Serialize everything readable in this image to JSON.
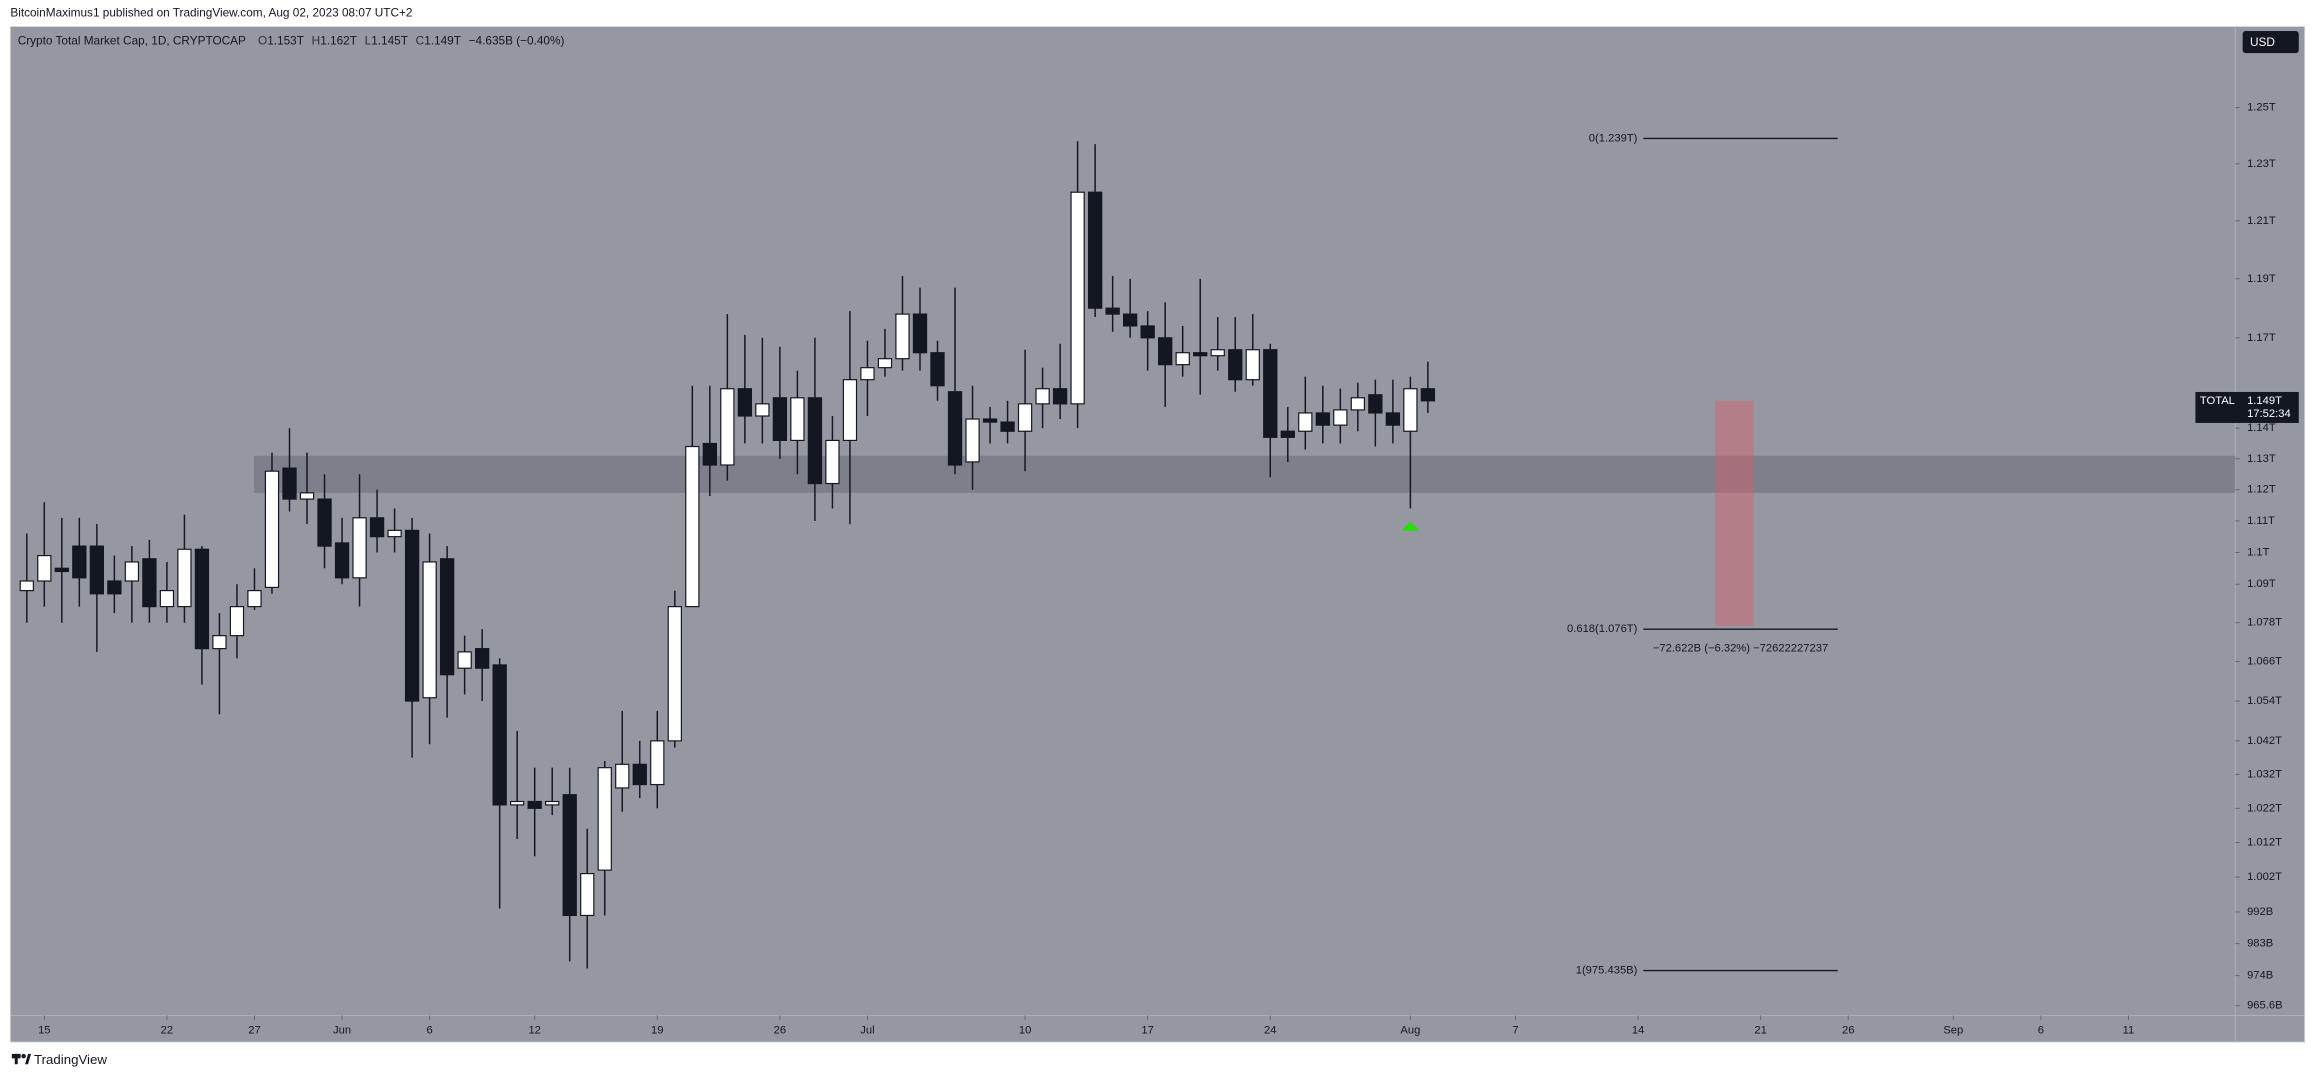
{
  "chart_data": {
    "type": "candlestick",
    "publisher": "BitcoinMaximus1 published on TradingView.com, Aug 02, 2023 08:07 UTC+2",
    "title": "Crypto Total Market Cap, 1D, CRYPTOCAP",
    "ohlc_legend": [
      {
        "key": "O",
        "value": "1.153T"
      },
      {
        "key": "H",
        "value": "1.162T"
      },
      {
        "key": "L",
        "value": "1.145T"
      },
      {
        "key": "C",
        "value": "1.149T"
      }
    ],
    "change": "−4.635B (−0.40%)",
    "currency": "USD",
    "brand": "TradingView",
    "log_scale": true,
    "up_color": "#ffffff",
    "down_color": "#131722",
    "background": "#9598a1",
    "x": [
      -1,
      0,
      1,
      2,
      3,
      4,
      5,
      6,
      7,
      8,
      9,
      10,
      11,
      12,
      13,
      14,
      15,
      16,
      17,
      18,
      19,
      20,
      21,
      22,
      23,
      24,
      25,
      26,
      27,
      28,
      29,
      30,
      31,
      32,
      33,
      34,
      35,
      36,
      37,
      38,
      39,
      40,
      41,
      42,
      43,
      44,
      45,
      46,
      47,
      48,
      49,
      50,
      51,
      52,
      53,
      54,
      55,
      56,
      57,
      58,
      59,
      60,
      61,
      62,
      63,
      64,
      65,
      66,
      67,
      68,
      69,
      70,
      71,
      72,
      73,
      74,
      75,
      76,
      77,
      78,
      79
    ],
    "open": [
      1088,
      1091,
      1095,
      1102,
      1102,
      1091,
      1091,
      1098,
      1083,
      1083,
      1101,
      1070,
      1074,
      1083,
      1089,
      1127,
      1117,
      1117,
      1103,
      1092,
      1111,
      1105,
      1107,
      1055,
      1098,
      1064,
      1070,
      1065,
      1023,
      1024,
      1023,
      1026,
      991,
      1004,
      1028,
      1035,
      1029,
      1042,
      1083,
      1135,
      1128,
      1153,
      1144,
      1150,
      1136,
      1150,
      1122,
      1136,
      1156,
      1160,
      1163,
      1178,
      1165,
      1152,
      1129,
      1143,
      1142,
      1139,
      1148,
      1153,
      1148,
      1220,
      1180,
      1178,
      1174,
      1170,
      1161,
      1165,
      1164,
      1166,
      1156,
      1166,
      1139,
      1139,
      1145,
      1141,
      1146,
      1151,
      1145,
      1139,
      1153
    ],
    "high": [
      1106,
      1116,
      1111,
      1111,
      1109,
      1099,
      1102,
      1104,
      1097,
      1112,
      1102,
      1081,
      1090,
      1095,
      1132,
      1140,
      1132,
      1125,
      1111,
      1125,
      1120,
      1114,
      1111,
      1106,
      1102,
      1074,
      1076,
      1067,
      1045,
      1034,
      1034,
      1034,
      1016,
      1036,
      1051,
      1042,
      1051,
      1088,
      1154,
      1154,
      1178,
      1171,
      1170,
      1167,
      1159,
      1170,
      1144,
      1179,
      1169,
      1173,
      1191,
      1187,
      1169,
      1187,
      1154,
      1147,
      1149,
      1166,
      1160,
      1168,
      1238,
      1237,
      1191,
      1190,
      1179,
      1182,
      1174,
      1190,
      1177,
      1177,
      1178,
      1168,
      1147,
      1157,
      1154,
      1153,
      1155,
      1156,
      1156,
      1157,
      1162
    ],
    "low": [
      1078,
      1083,
      1078,
      1083,
      1069,
      1081,
      1078,
      1078,
      1078,
      1078,
      1059,
      1050,
      1067,
      1082,
      1087,
      1113,
      1109,
      1095,
      1090,
      1083,
      1100,
      1100,
      1037,
      1041,
      1049,
      1056,
      1054,
      993,
      1013,
      1008,
      1020,
      978,
      976,
      991,
      1021,
      1025,
      1022,
      1040,
      1083,
      1118,
      1123,
      1135,
      1135,
      1130,
      1125,
      1110,
      1114,
      1109,
      1144,
      1157,
      1159,
      1159,
      1149,
      1125,
      1120,
      1135,
      1135,
      1126,
      1140,
      1143,
      1140,
      1177,
      1172,
      1170,
      1159,
      1147,
      1157,
      1151,
      1159,
      1152,
      1154,
      1124,
      1129,
      1133,
      1135,
      1135,
      1139,
      1134,
      1135,
      1114,
      1145
    ],
    "close": [
      1091,
      1099,
      1094,
      1092,
      1087,
      1087,
      1097,
      1083,
      1088,
      1101,
      1070,
      1074,
      1083,
      1088,
      1126,
      1117,
      1119,
      1102,
      1092,
      1111,
      1105,
      1107,
      1054,
      1097,
      1062,
      1069,
      1064,
      1023,
      1024,
      1022,
      1024,
      991,
      1003,
      1034,
      1035,
      1029,
      1042,
      1083,
      1134,
      1128,
      1153,
      1144,
      1148,
      1136,
      1150,
      1122,
      1136,
      1156,
      1160,
      1163,
      1178,
      1165,
      1154,
      1128,
      1143,
      1142,
      1139,
      1148,
      1153,
      1148,
      1220,
      1180,
      1178,
      1174,
      1170,
      1161,
      1165,
      1164,
      1166,
      1156,
      1166,
      1137,
      1137,
      1145,
      1141,
      1146,
      1150,
      1145,
      1141,
      1153,
      1149
    ],
    "xlim": [
      -1.94,
      125.1
    ],
    "xticks": [
      {
        "value": 0,
        "label": "15"
      },
      {
        "value": 7,
        "label": "22"
      },
      {
        "value": 12,
        "label": "27"
      },
      {
        "value": 17,
        "label": "Jun"
      },
      {
        "value": 22,
        "label": "6"
      },
      {
        "value": 28,
        "label": "12"
      },
      {
        "value": 35,
        "label": "19"
      },
      {
        "value": 42,
        "label": "26"
      },
      {
        "value": 47,
        "label": "Jul"
      },
      {
        "value": 56,
        "label": "10"
      },
      {
        "value": 63,
        "label": "17"
      },
      {
        "value": 70,
        "label": "24"
      },
      {
        "value": 78,
        "label": "Aug"
      },
      {
        "value": 84,
        "label": "7"
      },
      {
        "value": 91,
        "label": "14"
      },
      {
        "value": 98,
        "label": "21"
      },
      {
        "value": 103,
        "label": "26"
      },
      {
        "value": 109,
        "label": "Sep"
      },
      {
        "value": 114,
        "label": "6"
      },
      {
        "value": 119,
        "label": "11"
      }
    ],
    "ylim": [
      962.9,
      1279.5
    ],
    "yticks": [
      {
        "value": 1250,
        "label": "1.25T"
      },
      {
        "value": 1230,
        "label": "1.23T"
      },
      {
        "value": 1210,
        "label": "1.21T"
      },
      {
        "value": 1190,
        "label": "1.19T"
      },
      {
        "value": 1170,
        "label": "1.17T"
      },
      {
        "value": 1140,
        "label": "1.14T"
      },
      {
        "value": 1130,
        "label": "1.13T"
      },
      {
        "value": 1120,
        "label": "1.12T"
      },
      {
        "value": 1110,
        "label": "1.11T"
      },
      {
        "value": 1100,
        "label": "1.1T"
      },
      {
        "value": 1090,
        "label": "1.09T"
      },
      {
        "value": 1078,
        "label": "1.078T"
      },
      {
        "value": 1066,
        "label": "1.066T"
      },
      {
        "value": 1054,
        "label": "1.054T"
      },
      {
        "value": 1042,
        "label": "1.042T"
      },
      {
        "value": 1032,
        "label": "1.032T"
      },
      {
        "value": 1022,
        "label": "1.022T"
      },
      {
        "value": 1012,
        "label": "1.012T"
      },
      {
        "value": 1002,
        "label": "1.002T"
      },
      {
        "value": 992,
        "label": "992B"
      },
      {
        "value": 983,
        "label": "983B"
      },
      {
        "value": 974,
        "label": "974B"
      },
      {
        "value": 965.6,
        "label": "965.6B"
      }
    ],
    "support_zone": {
      "x_start": 11.97,
      "y": [
        1119,
        1131
      ],
      "color": "rgba(95,98,110,0.45)"
    },
    "fib_x": [
      91.3,
      102.4
    ],
    "fib_levels": [
      {
        "value": 1239,
        "label": "0(1.239T)"
      },
      {
        "value": 1076,
        "label": "0.618(1.076T)"
      },
      {
        "value": 975.435,
        "label": "1(975.435B)"
      }
    ],
    "measure_label": "−72.622B (−6.32%) −72622227237",
    "target_box": {
      "x": [
        95.4,
        97.6
      ],
      "y": [
        1077,
        1149
      ],
      "color": "rgba(214,96,104,0.45)"
    },
    "signal_color": "#22e000",
    "price_label": {
      "name": "TOTAL",
      "value": 1149,
      "label": "1.149T",
      "countdown": "17:52:34"
    }
  }
}
